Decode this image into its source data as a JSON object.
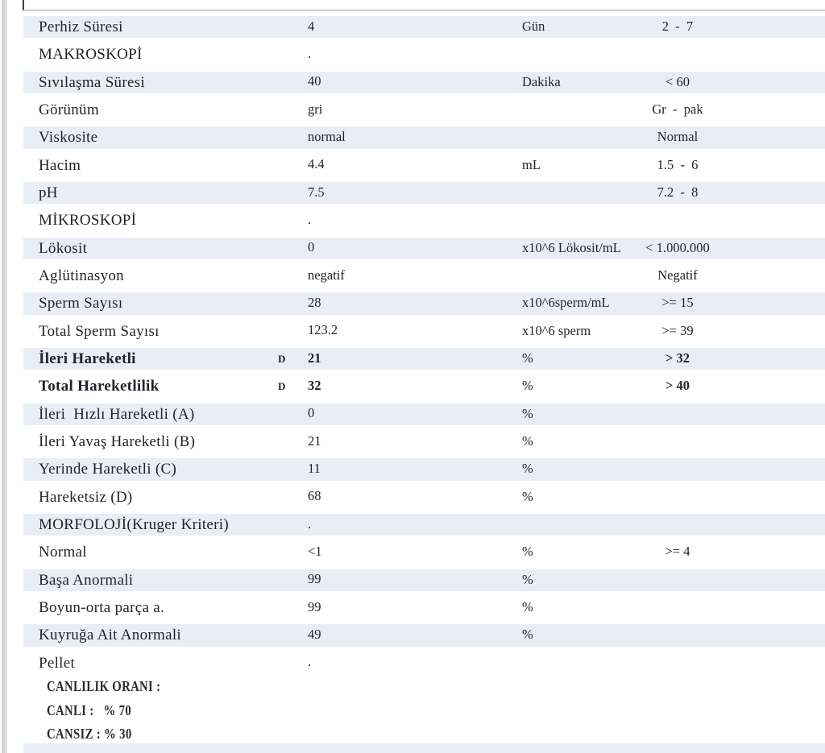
{
  "colors": {
    "row_band": "#e9eef6",
    "ink": "#23232b",
    "page_edge": "#d4d6da",
    "top_rule": "#9aa0a8",
    "top_tick": "#3c4049"
  },
  "report": {
    "rows": [
      {
        "label": "Perhiz Süresi",
        "flag": "",
        "value": "4",
        "unit": "Gün",
        "ref": "2  -  7",
        "bold": false
      },
      {
        "label": "MAKROSKOPİ",
        "flag": "",
        "value": ".",
        "unit": "",
        "ref": "",
        "bold": false
      },
      {
        "label": "Sıvılaşma Süresi",
        "flag": "",
        "value": "40",
        "unit": "Dakika",
        "ref": "< 60",
        "bold": false
      },
      {
        "label": "Görünüm",
        "flag": "",
        "value": "gri",
        "unit": "",
        "ref": "Gr  -  pak",
        "bold": false
      },
      {
        "label": "Viskosite",
        "flag": "",
        "value": "normal",
        "unit": "",
        "ref": "Normal",
        "bold": false
      },
      {
        "label": "Hacim",
        "flag": "",
        "value": "4.4",
        "unit": "mL",
        "ref": "1.5  -  6",
        "bold": false
      },
      {
        "label": "pH",
        "flag": "",
        "value": "7.5",
        "unit": "",
        "ref": "7.2  -  8",
        "bold": false
      },
      {
        "label": "MİKROSKOPİ",
        "flag": "",
        "value": ".",
        "unit": "",
        "ref": "",
        "bold": false
      },
      {
        "label": "Lökosit",
        "flag": "",
        "value": "0",
        "unit": "x10^6 Lökosit/mL",
        "ref": "< 1.000.000",
        "bold": false
      },
      {
        "label": "Aglütinasyon",
        "flag": "",
        "value": "negatif",
        "unit": "",
        "ref": "Negatif",
        "bold": false
      },
      {
        "label": "Sperm Sayısı",
        "flag": "",
        "value": "28",
        "unit": "x10^6sperm/mL",
        "ref": ">= 15",
        "bold": false
      },
      {
        "label": "Total Sperm Sayısı",
        "flag": "",
        "value": "123.2",
        "unit": "x10^6 sperm",
        "ref": ">= 39",
        "bold": false
      },
      {
        "label": "İleri Hareketli",
        "flag": "D",
        "value": "21",
        "unit": "%",
        "ref": "> 32",
        "bold": true
      },
      {
        "label": "Total Hareketlilik",
        "flag": "D",
        "value": "32",
        "unit": "%",
        "ref": "> 40",
        "bold": true
      },
      {
        "label": "İleri  Hızlı Hareketli (A)",
        "flag": "",
        "value": "0",
        "unit": "%",
        "ref": "",
        "bold": false
      },
      {
        "label": "İleri Yavaş Hareketli (B)",
        "flag": "",
        "value": "21",
        "unit": "%",
        "ref": "",
        "bold": false
      },
      {
        "label": "Yerinde Hareketli (C)",
        "flag": "",
        "value": "11",
        "unit": "%",
        "ref": "",
        "bold": false
      },
      {
        "label": "Hareketsiz (D)",
        "flag": "",
        "value": "68",
        "unit": "%",
        "ref": "",
        "bold": false
      },
      {
        "label": "MORFOLOJİ(Kruger Kriteri)",
        "flag": "",
        "value": ".",
        "unit": "",
        "ref": "",
        "bold": false
      },
      {
        "label": "Normal",
        "flag": "",
        "value": "<1",
        "unit": "%",
        "ref": ">= 4",
        "bold": false
      },
      {
        "label": "Başa Anormali",
        "flag": "",
        "value": "99",
        "unit": "%",
        "ref": "",
        "bold": false
      },
      {
        "label": "Boyun-orta parça a.",
        "flag": "",
        "value": "99",
        "unit": "%",
        "ref": "",
        "bold": false
      },
      {
        "label": "Kuyruğa Ait Anormali",
        "flag": "",
        "value": "49",
        "unit": "%",
        "ref": "",
        "bold": false
      },
      {
        "label": "Pellet",
        "flag": "",
        "value": ".",
        "unit": "",
        "ref": "",
        "bold": false
      }
    ],
    "vitality_lines": [
      "CANLILIK ORANI :",
      "CANLI :   % 70",
      "CANSIZ : % 30"
    ]
  }
}
